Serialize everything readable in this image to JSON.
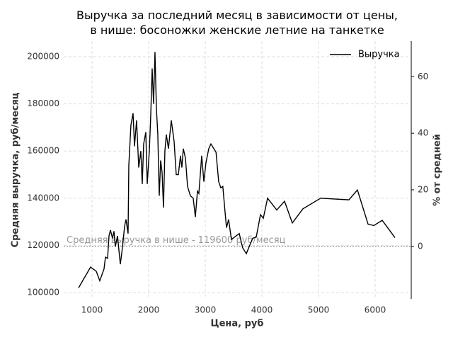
{
  "chart_data": {
    "type": "line",
    "title": "Выручка за последний месяц в зависимости от цены,\nв нише: босоножки женские летние на танкетке",
    "x_label": "Цена, руб",
    "y_label": "Средняя выручка, руб/месяц",
    "y2_label": "% от средней",
    "xlim": [
      500,
      6625
    ],
    "xticks": [
      1000,
      2000,
      3000,
      4000,
      5000,
      6000
    ],
    "ylim": [
      97300,
      206600
    ],
    "yticks": [
      100000,
      120000,
      140000,
      160000,
      180000,
      200000
    ],
    "y2lim": [
      -18.6,
      72.6
    ],
    "y2ticks": [
      0,
      20,
      40,
      60
    ],
    "grid": true,
    "legend": "upper right",
    "reference_line": 119600,
    "reference_label": "Средняя выручка в нише - 119600 руб/месяц",
    "x": [
      762,
      975,
      1075,
      1137,
      1212,
      1237,
      1275,
      1300,
      1325,
      1362,
      1387,
      1412,
      1450,
      1500,
      1537,
      1575,
      1600,
      1637,
      1650,
      1687,
      1725,
      1750,
      1787,
      1825,
      1862,
      1887,
      1912,
      1950,
      1975,
      2012,
      2037,
      2062,
      2087,
      2112,
      2137,
      2162,
      2187,
      2212,
      2237,
      2262,
      2287,
      2312,
      2350,
      2400,
      2450,
      2487,
      2525,
      2562,
      2587,
      2612,
      2650,
      2687,
      2737,
      2787,
      2825,
      2862,
      2887,
      2937,
      2975,
      3012,
      3062,
      3100,
      3190,
      3237,
      3275,
      3310,
      3350,
      3375,
      3412,
      3462,
      3600,
      3660,
      3725,
      3837,
      3900,
      3975,
      4025,
      4100,
      4262,
      4400,
      4537,
      4725,
      5037,
      5537,
      5687,
      5875,
      5975,
      6125,
      6350
    ],
    "series": [
      {
        "name": "Выручка",
        "color": "#000000",
        "values": [
          102000,
          110800,
          109000,
          105000,
          110000,
          115000,
          114500,
          124000,
          126500,
          123000,
          126000,
          119500,
          124000,
          112000,
          119000,
          128000,
          131000,
          125000,
          154000,
          171000,
          176000,
          162000,
          173000,
          153000,
          160000,
          146000,
          163000,
          168000,
          146000,
          160000,
          175000,
          195000,
          180000,
          202000,
          178000,
          167000,
          141000,
          156000,
          151000,
          136000,
          160000,
          167000,
          161000,
          173000,
          164000,
          150000,
          150000,
          158000,
          153000,
          161000,
          157000,
          145000,
          141000,
          140000,
          132000,
          143000,
          142000,
          158000,
          147000,
          155000,
          161000,
          163000,
          159500,
          147000,
          144400,
          145000,
          134000,
          127500,
          131000,
          122500,
          125000,
          119000,
          116500,
          123000,
          123500,
          133000,
          131500,
          140000,
          135000,
          138700,
          129500,
          135500,
          140000,
          139300,
          143500,
          129000,
          128400,
          130600,
          123300
        ]
      }
    ]
  }
}
